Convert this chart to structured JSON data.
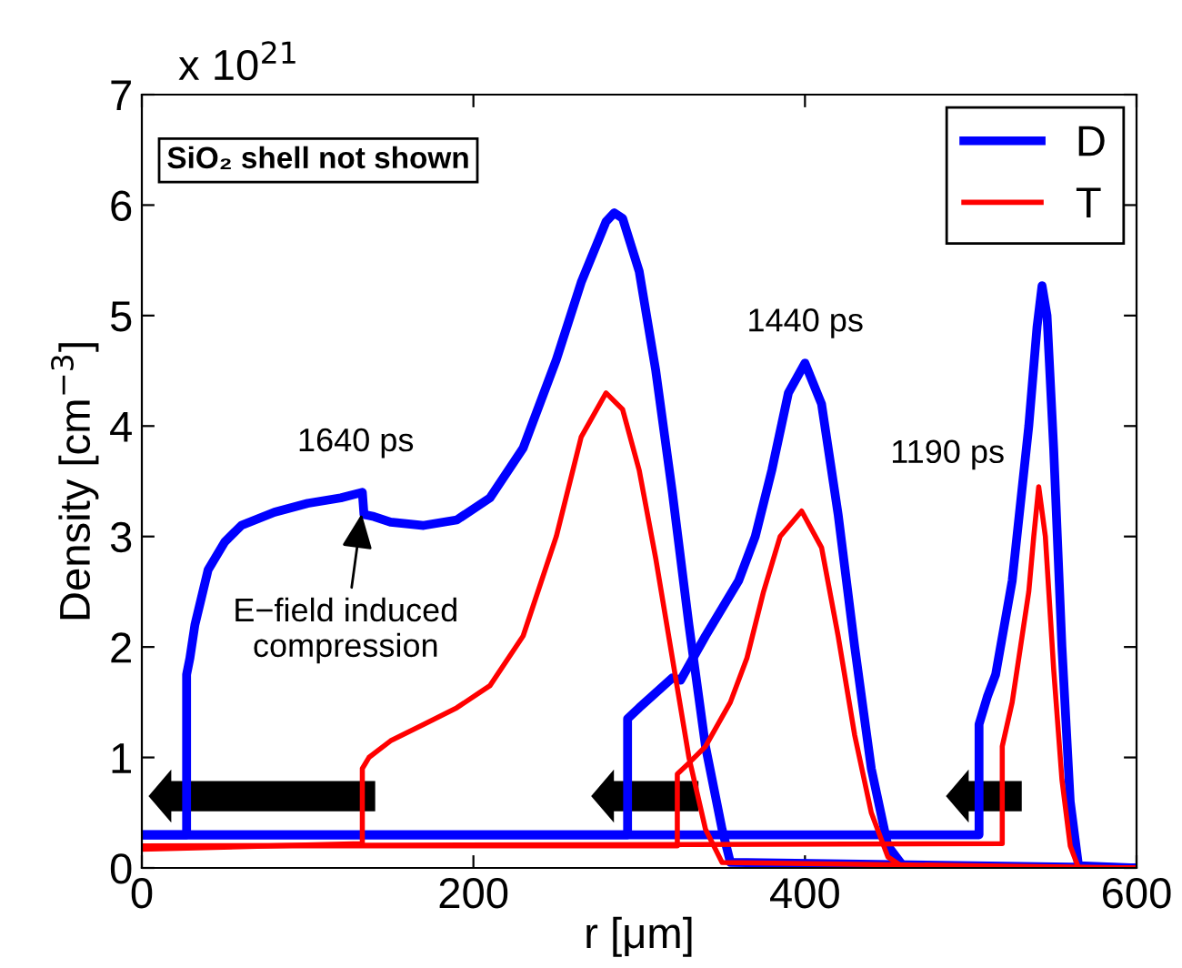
{
  "chart_data": {
    "type": "line",
    "xlabel": "r [μm]",
    "ylabel": "Density [cm$^{−3}$]",
    "xlim": [
      0,
      600
    ],
    "xticks": [
      0,
      200,
      400,
      600
    ],
    "ylim": [
      0,
      7
    ],
    "yticks": [
      0,
      1,
      2,
      3,
      4,
      5,
      6,
      7
    ],
    "grid": false,
    "legend": "top right",
    "marker": "none",
    "line_style": "solid",
    "series": [
      {
        "name": "D",
        "color": "#0000ff",
        "x": [
          0,
          27,
          27,
          29,
          32,
          40,
          50,
          60,
          80,
          100,
          120,
          133,
          134,
          140,
          150,
          170,
          190,
          210,
          230,
          250,
          265,
          280,
          285,
          290,
          300,
          310,
          320,
          330,
          340,
          350,
          355,
          600
        ],
        "values": [
          0.3,
          0.3,
          1.75,
          1.9,
          2.2,
          2.7,
          2.95,
          3.1,
          3.22,
          3.3,
          3.35,
          3.4,
          3.2,
          3.18,
          3.13,
          3.1,
          3.15,
          3.35,
          3.8,
          4.6,
          5.3,
          5.85,
          5.93,
          5.88,
          5.4,
          4.5,
          3.4,
          2.2,
          1.1,
          0.35,
          0.05,
          0
        ]
      },
      {
        "color": "#0000ff",
        "x": [
          0,
          293,
          293,
          300,
          320,
          325,
          340,
          360,
          370,
          380,
          390,
          400,
          410,
          420,
          430,
          440,
          450,
          460,
          600
        ],
        "values": [
          0.3,
          0.3,
          1.35,
          1.45,
          1.72,
          1.7,
          2.1,
          2.6,
          3.0,
          3.6,
          4.3,
          4.57,
          4.2,
          3.2,
          2.0,
          0.9,
          0.2,
          0,
          0
        ]
      },
      {
        "color": "#0000ff",
        "x": [
          0,
          505,
          505,
          510,
          515,
          525,
          535,
          540,
          543,
          546,
          550,
          555,
          560,
          565,
          600
        ],
        "values": [
          0.3,
          0.3,
          1.3,
          1.55,
          1.75,
          2.6,
          4.0,
          4.9,
          5.27,
          5.0,
          3.8,
          2.0,
          0.6,
          0.02,
          0
        ]
      },
      {
        "name": "T",
        "color": "#ff0000",
        "x": [
          0,
          133,
          133,
          137,
          150,
          170,
          190,
          210,
          230,
          250,
          265,
          280,
          290,
          300,
          310,
          320,
          330,
          340,
          350,
          600
        ],
        "values": [
          0.17,
          0.22,
          0.9,
          1.0,
          1.15,
          1.3,
          1.45,
          1.65,
          2.1,
          3.0,
          3.9,
          4.3,
          4.15,
          3.6,
          2.8,
          1.9,
          1.0,
          0.35,
          0.05,
          0
        ]
      },
      {
        "color": "#ff0000",
        "x": [
          0,
          323,
          323,
          330,
          340,
          355,
          365,
          375,
          385,
          398,
          410,
          420,
          430,
          440,
          450,
          460,
          600
        ],
        "values": [
          0.2,
          0.2,
          0.85,
          0.95,
          1.1,
          1.5,
          1.9,
          2.5,
          3.0,
          3.23,
          2.9,
          2.1,
          1.2,
          0.5,
          0.1,
          0,
          0
        ]
      },
      {
        "color": "#ff0000",
        "x": [
          0,
          519,
          519,
          525,
          530,
          535,
          538,
          541,
          545,
          550,
          555,
          560,
          565,
          600
        ],
        "values": [
          0.2,
          0.22,
          1.1,
          1.5,
          2.0,
          2.5,
          3.0,
          3.45,
          3.0,
          1.8,
          0.8,
          0.2,
          0,
          0
        ]
      }
    ],
    "annotations": [
      "1640 ps",
      "1440 ps",
      "1190 ps",
      {
        "text": "E−field induced\ncompression",
        "x": 133,
        "y": 3.25
      },
      "SiO₂ shell not shown",
      "x 10$^{21}$"
    ]
  }
}
